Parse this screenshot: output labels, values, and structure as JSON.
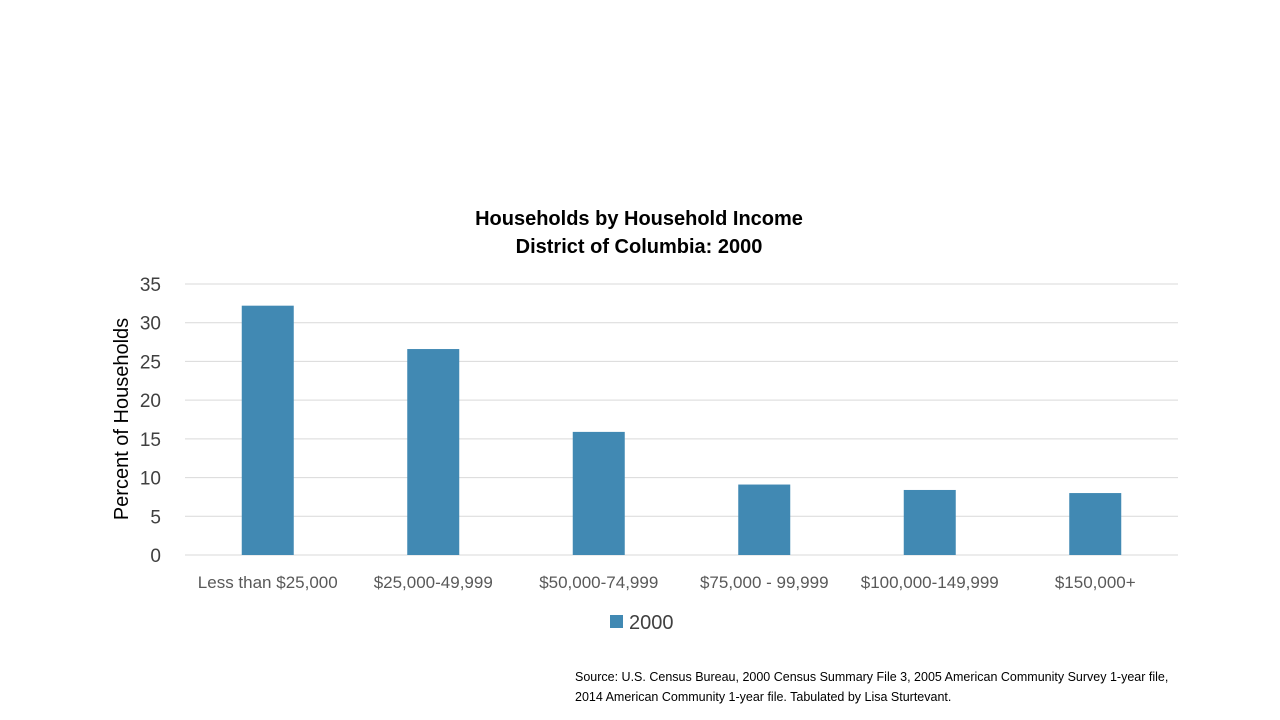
{
  "chart_data": {
    "type": "bar",
    "title": [
      "Households by Household Income",
      "District of Columbia: 2000"
    ],
    "ylabel": "Percent of Households",
    "xlabel": "",
    "ylim": [
      0,
      35
    ],
    "yticks": [
      0,
      5,
      10,
      15,
      20,
      25,
      30,
      35
    ],
    "grid": true,
    "legend_position": "bottom",
    "categories": [
      "Less than $25,000",
      "$25,000-49,999",
      "$50,000-74,999",
      "$75,000 - 99,999",
      "$100,000-149,999",
      "$150,000+"
    ],
    "series": [
      {
        "name": "2000",
        "values": [
          32.2,
          26.6,
          15.9,
          9.1,
          8.4,
          8.0
        ],
        "color": "#4189b3"
      }
    ]
  },
  "source": {
    "line1": "Source: U.S. Census Bureau, 2000 Census Summary File 3, 2005 American Community Survey 1-year file,",
    "line2": "2014 American Community 1-year file. Tabulated by Lisa Sturtevant."
  },
  "colors": {
    "bar": "#4189b3",
    "grid": "#d9d9d9",
    "axis_text": "#595959"
  }
}
